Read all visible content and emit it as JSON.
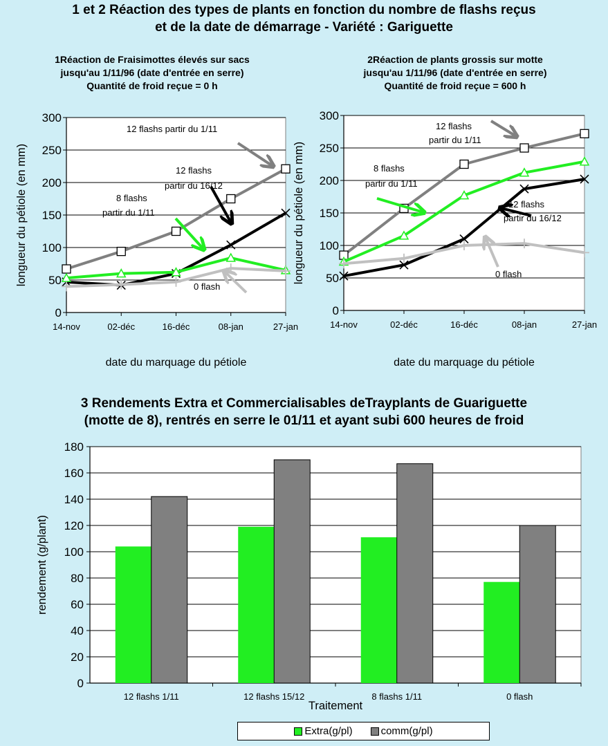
{
  "page_title": {
    "line1": "1 et 2 Réaction des types de plants en fonction du nombre de flashs reçus",
    "line2": "et de la date de démarrage - Variété : Gariguette"
  },
  "bar_title": {
    "line1": "3 Rendements Extra et Commercialisables deTrayplants de Guariguette",
    "line2": "(motte de 8), rentrés en serre le 01/11 et ayant subi 600 heures de froid"
  },
  "colors": {
    "background": "#cfeef6",
    "plot": "#ffffff",
    "green": "#22ee22",
    "dark_gray": "#808080",
    "light_gray": "#c0c0c0",
    "black": "#000000"
  },
  "chart_data": [
    {
      "type": "line",
      "title": "1Réaction de Fraisimottes élevés sur sacs",
      "subtitle": [
        "jusqu'au 1/11/96 (date d'entrée en serre)",
        "Quantité de froid reçue = 0 h"
      ],
      "xlabel": "date du marquage du pétiole",
      "ylabel": "longueur du pétiole (en mm)",
      "ylim": [
        0,
        300
      ],
      "yticks": [
        "0",
        "50",
        "100",
        "150",
        "200",
        "250",
        "300"
      ],
      "categories": [
        "14-nov",
        "02-déc",
        "16-déc",
        "08-jan",
        "27-jan"
      ],
      "series": [
        {
          "values": [
            67,
            94,
            125,
            175,
            221
          ],
          "color": "#808080",
          "marker": "square"
        },
        {
          "values": [
            47,
            42,
            60,
            104,
            153
          ],
          "color": "#000000",
          "marker": "x"
        },
        {
          "values": [
            53,
            60,
            62,
            84,
            65
          ],
          "color": "#22ee22",
          "marker": "triangle"
        },
        {
          "values": [
            40,
            43,
            47,
            68,
            64
          ],
          "color": "#c0c0c0",
          "marker": "plus"
        }
      ],
      "annotations": [
        {
          "text": "12 flashs    partir du 1/11"
        },
        {
          "text": "12 flashs"
        },
        {
          "text": "partir du 16/12"
        },
        {
          "text": "8 flashs"
        },
        {
          "text": "partir du 1/11"
        },
        {
          "text": "0 flash"
        }
      ]
    },
    {
      "type": "line",
      "title": "2Réaction de plants grossis sur motte",
      "subtitle": [
        "jusqu'au 1/11/96 (date d'entrée en serre)",
        "Quantité de froid reçue = 600 h"
      ],
      "xlabel": "date du marquage du pétiole",
      "ylabel": "longueur du pétiole (en mm)",
      "ylim": [
        0,
        300
      ],
      "yticks": [
        "0",
        "50",
        "100",
        "150",
        "200",
        "250",
        "300"
      ],
      "categories": [
        "14-nov",
        "02-déc",
        "16-déc",
        "08-jan",
        "27-jan"
      ],
      "series": [
        {
          "values": [
            85,
            157,
            225,
            250,
            272
          ],
          "color": "#808080",
          "marker": "square"
        },
        {
          "values": [
            75,
            115,
            177,
            212,
            229
          ],
          "color": "#22ee22",
          "marker": "triangle"
        },
        {
          "values": [
            53,
            70,
            110,
            187,
            202
          ],
          "color": "#000000",
          "marker": "x"
        },
        {
          "values": [
            72,
            80,
            100,
            103,
            89
          ],
          "color": "#c0c0c0",
          "marker": "plus"
        }
      ],
      "annotations": [
        {
          "text": "12 flashs"
        },
        {
          "text": "partir du 1/11"
        },
        {
          "text": "8 flashs"
        },
        {
          "text": "partir du 1/11"
        },
        {
          "text": "12 flashs"
        },
        {
          "text": "partir du 16/12"
        },
        {
          "text": "0 flash"
        }
      ]
    },
    {
      "type": "bar",
      "title": "",
      "xlabel": "Traitement",
      "ylabel": "rendement (g/plant)",
      "ylim": [
        0,
        180
      ],
      "yticks": [
        "0",
        "20",
        "40",
        "60",
        "80",
        "100",
        "120",
        "140",
        "160",
        "180"
      ],
      "categories": [
        "12 flashs 1/11",
        "12 flashs 15/12",
        "8 flashs 1/11",
        "0 flash"
      ],
      "series": [
        {
          "name": "Extra(g/pl)",
          "values": [
            104,
            119,
            111,
            77
          ],
          "color": "#22ee22"
        },
        {
          "name": "comm(g/pl)",
          "values": [
            142,
            170,
            167,
            120
          ],
          "color": "#808080"
        }
      ],
      "legend": "bottom"
    }
  ]
}
